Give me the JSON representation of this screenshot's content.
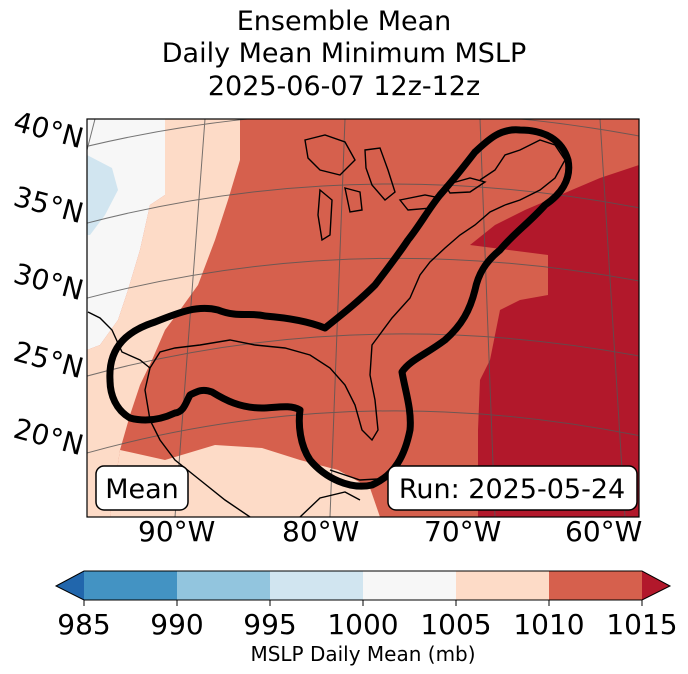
{
  "title_lines": [
    "Ensemble Mean",
    "Daily Mean Minimum MSLP",
    "2025-06-07 12z-12z"
  ],
  "map": {
    "lat_labels": [
      "40°N",
      "35°N",
      "30°N",
      "25°N",
      "20°N"
    ],
    "lon_labels": [
      "90°W",
      "80°W",
      "70°W",
      "60°W"
    ],
    "left_box": "Mean",
    "right_box": "Run: 2025-05-24",
    "contour": "black outline of region"
  },
  "colorbar": {
    "label": "MSLP Daily Mean (mb)",
    "ticks": [
      "985",
      "990",
      "995",
      "1000",
      "1005",
      "1010",
      "1015"
    ],
    "colors": {
      "under": "#2166ac",
      "b985_990": "#4393c3",
      "b990_995": "#92c5de",
      "b995_1000": "#d1e5f0",
      "b1000_1005": "#f7f7f7",
      "b1005_1010": "#fddbc7",
      "b1010_1015": "#d6604d",
      "over": "#b2182b"
    }
  },
  "chart_data": {
    "type": "heatmap",
    "title": "Ensemble Mean Daily Mean Minimum MSLP 2025-06-07 12z-12z",
    "colorbar_label": "MSLP Daily Mean (mb)",
    "levels": [
      985,
      990,
      995,
      1000,
      1005,
      1010,
      1015
    ],
    "extend": "both",
    "lat_ticks": [
      40,
      35,
      30,
      25,
      20
    ],
    "lon_ticks": [
      -90,
      -80,
      -70,
      -60
    ],
    "regions": [
      {
        "range_mb": "995-1000",
        "area": "small patch near 36°N far west"
      },
      {
        "range_mb": "1000-1005",
        "area": "western interior / northwest corner"
      },
      {
        "range_mb": "1005-1010",
        "area": "western band, western Gulf coast and southwest"
      },
      {
        "range_mb": "1010-1015",
        "area": "central and eastern U.S., Gulf of Mexico, coastal Atlantic"
      },
      {
        "range_mb": ">1015",
        "area": "western Atlantic east of ~68°W"
      }
    ]
  }
}
